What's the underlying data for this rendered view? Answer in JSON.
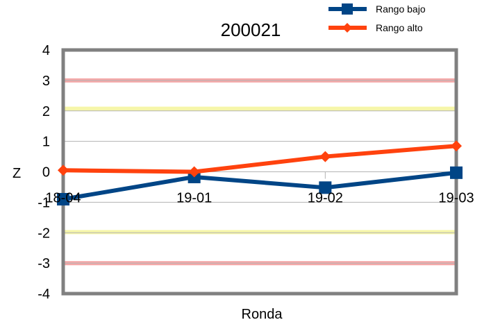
{
  "chart_data": {
    "type": "line",
    "title": "200021",
    "xlabel": "Ronda",
    "ylabel": "Z",
    "categories": [
      "18-04",
      "19-01",
      "19-02",
      "19-03"
    ],
    "ylim": [
      -4,
      4
    ],
    "yticks": [
      4,
      3,
      2,
      1,
      0,
      -1,
      -2,
      -3,
      -4
    ],
    "grid": true,
    "legend_position": "top-right",
    "series": [
      {
        "name": "Rango bajo",
        "values": [
          -0.9,
          -0.17,
          -0.52,
          -0.03
        ],
        "color": "#004586",
        "marker": "square"
      },
      {
        "name": "Rango alto",
        "values": [
          0.05,
          0.0,
          0.5,
          0.85
        ],
        "color": "#ff420e",
        "marker": "diamond"
      }
    ],
    "reference_lines": [
      {
        "value": 3,
        "color": "#f4a0a0"
      },
      {
        "value": 2.07,
        "color": "#f5f5a0"
      },
      {
        "value": -1.98,
        "color": "#f5f5a0"
      },
      {
        "value": -3,
        "color": "#f4a0a0"
      }
    ]
  }
}
